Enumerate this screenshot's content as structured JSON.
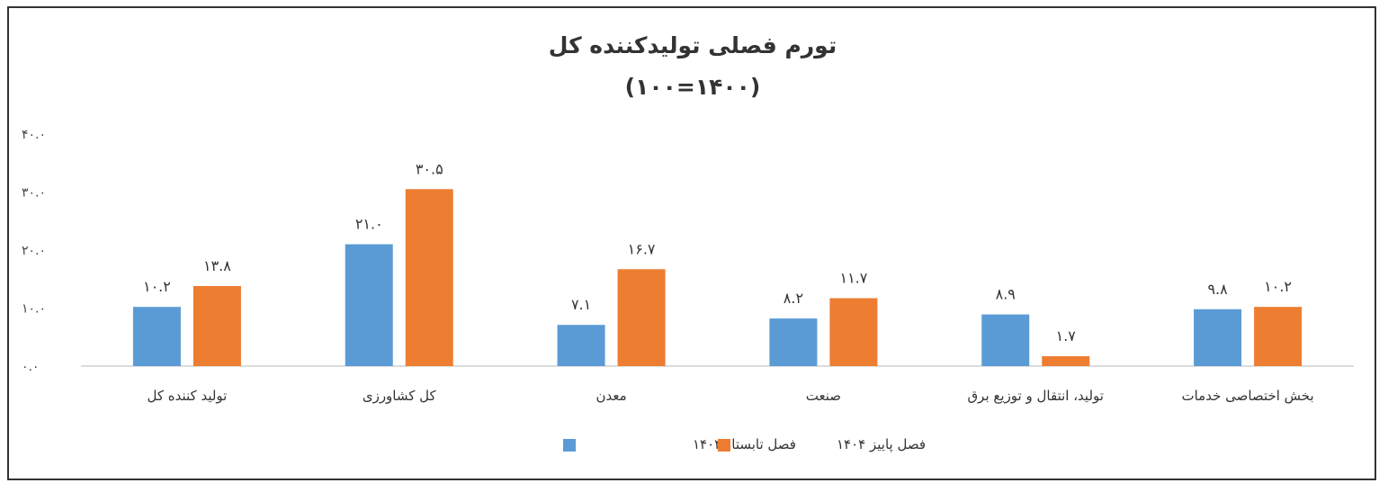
{
  "chart_data": {
    "type": "bar",
    "title": "تورم فصلی تولیدکننده کل",
    "subtitle": "(۱۴۰۰=۱۰۰)",
    "xlabel": "",
    "ylabel": "",
    "ylim": [
      0,
      40
    ],
    "yticks": [
      "۰.۰",
      "۱۰.۰",
      "۲۰.۰",
      "۳۰.۰",
      "۴۰.۰"
    ],
    "ytick_values": [
      0,
      10,
      20,
      30,
      40
    ],
    "grid": false,
    "legend_position": "bottom",
    "categories": [
      "تولید کننده کل",
      "کل کشاورزی",
      "معدن",
      "صنعت",
      "تولید، انتقال و توزیع برق",
      "بخش اختصاصی خدمات"
    ],
    "series": [
      {
        "name": "فصل تابستان۱۴۰۴",
        "color": "#5B9BD5",
        "values": [
          10.2,
          21.0,
          7.1,
          8.2,
          8.9,
          9.8
        ],
        "labels": [
          "۱۰.۲",
          "۲۱.۰",
          "۷.۱",
          "۸.۲",
          "۸.۹",
          "۹.۸"
        ]
      },
      {
        "name": "فصل پاییز ۱۴۰۴",
        "color": "#ED7D31",
        "values": [
          13.8,
          30.5,
          16.7,
          11.7,
          1.7,
          10.2
        ],
        "labels": [
          "۱۳.۸",
          "۳۰.۵",
          "۱۶.۷",
          "۱۱.۷",
          "۱.۷",
          "۱۰.۲"
        ]
      }
    ]
  }
}
